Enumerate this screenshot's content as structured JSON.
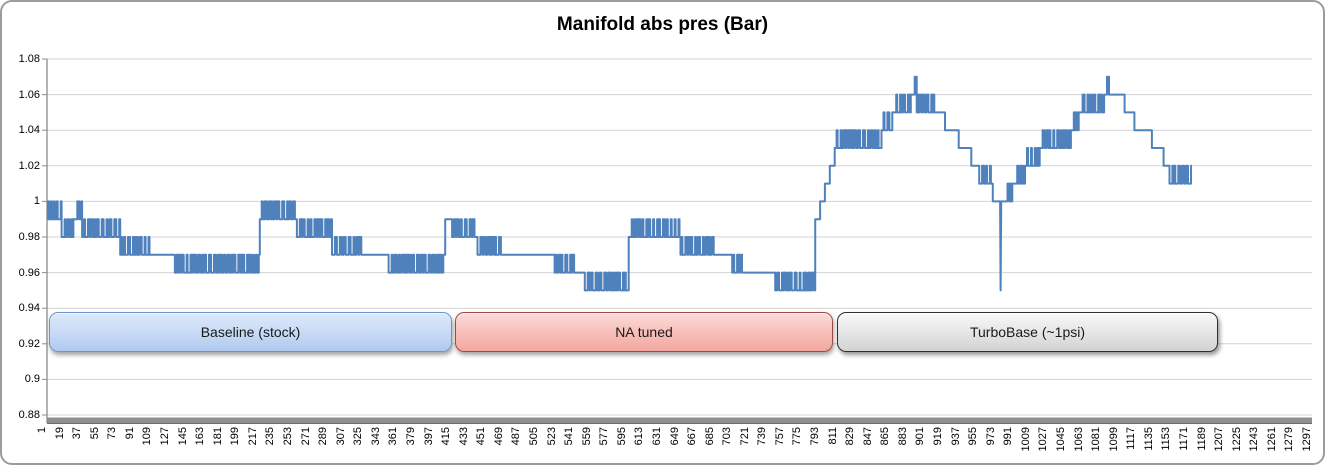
{
  "chart_data": {
    "type": "line",
    "title": "Manifold abs pres (Bar)",
    "xlabel": "",
    "ylabel": "",
    "ylim": [
      0.88,
      1.08
    ],
    "x_range": [
      1,
      1297
    ],
    "grid": true,
    "legend": "none",
    "y_tick_labels": [
      "0.88",
      "0.9",
      "0.92",
      "0.94",
      "0.96",
      "0.98",
      "1",
      "1.02",
      "1.04",
      "1.06",
      "1.08"
    ],
    "y_tick_values": [
      0.88,
      0.9,
      0.92,
      0.94,
      0.96,
      0.98,
      1.0,
      1.02,
      1.04,
      1.06,
      1.08
    ],
    "x_ticks": [
      1,
      19,
      37,
      55,
      73,
      91,
      109,
      127,
      145,
      163,
      181,
      199,
      217,
      235,
      253,
      271,
      289,
      307,
      325,
      343,
      361,
      379,
      397,
      415,
      433,
      451,
      469,
      487,
      505,
      523,
      541,
      559,
      577,
      595,
      613,
      631,
      649,
      667,
      685,
      703,
      721,
      739,
      757,
      775,
      793,
      811,
      829,
      847,
      865,
      883,
      901,
      919,
      937,
      955,
      973,
      991,
      1009,
      1027,
      1045,
      1063,
      1081,
      1099,
      1117,
      1135,
      1153,
      1171,
      1189,
      1207,
      1225,
      1243,
      1261,
      1279,
      1297
    ],
    "series_color": "#4f81bd",
    "series_segments": [
      {
        "c0": 1,
        "c1": 16,
        "type": "toggle",
        "lo": 0.99,
        "hi": 1.0
      },
      {
        "c0": 16,
        "c1": 29,
        "type": "toggle",
        "lo": 0.98,
        "hi": 0.99
      },
      {
        "c0": 29,
        "c1": 37,
        "type": "toggle",
        "lo": 0.99,
        "hi": 1.0
      },
      {
        "c0": 37,
        "c1": 76,
        "type": "toggle",
        "lo": 0.98,
        "hi": 0.99
      },
      {
        "c0": 76,
        "c1": 106,
        "type": "toggle",
        "lo": 0.97,
        "hi": 0.98
      },
      {
        "c0": 106,
        "c1": 132,
        "type": "flat",
        "v": 0.97
      },
      {
        "c0": 132,
        "c1": 219,
        "type": "toggle",
        "lo": 0.96,
        "hi": 0.97
      },
      {
        "c0": 219,
        "c1": 257,
        "type": "toggle",
        "lo": 0.99,
        "hi": 1.0
      },
      {
        "c0": 257,
        "c1": 293,
        "type": "toggle",
        "lo": 0.98,
        "hi": 0.99
      },
      {
        "c0": 293,
        "c1": 324,
        "type": "toggle",
        "lo": 0.97,
        "hi": 0.98
      },
      {
        "c0": 324,
        "c1": 351,
        "type": "flat",
        "v": 0.97
      },
      {
        "c0": 351,
        "c1": 409,
        "type": "toggle",
        "lo": 0.96,
        "hi": 0.97
      },
      {
        "c0": 409,
        "c1": 416,
        "type": "flat",
        "v": 0.99
      },
      {
        "c0": 416,
        "c1": 442,
        "type": "toggle",
        "lo": 0.98,
        "hi": 0.99
      },
      {
        "c0": 442,
        "c1": 467,
        "type": "toggle",
        "lo": 0.97,
        "hi": 0.98
      },
      {
        "c0": 467,
        "c1": 521,
        "type": "flat",
        "v": 0.97
      },
      {
        "c0": 521,
        "c1": 542,
        "type": "toggle",
        "lo": 0.96,
        "hi": 0.97
      },
      {
        "c0": 542,
        "c1": 552,
        "type": "flat",
        "v": 0.96
      },
      {
        "c0": 552,
        "c1": 597,
        "type": "toggle",
        "lo": 0.95,
        "hi": 0.96
      },
      {
        "c0": 597,
        "c1": 650,
        "type": "toggle",
        "lo": 0.98,
        "hi": 0.99
      },
      {
        "c0": 650,
        "c1": 685,
        "type": "toggle",
        "lo": 0.97,
        "hi": 0.98
      },
      {
        "c0": 685,
        "c1": 703,
        "type": "flat",
        "v": 0.97
      },
      {
        "c0": 703,
        "c1": 715,
        "type": "toggle",
        "lo": 0.96,
        "hi": 0.97
      },
      {
        "c0": 715,
        "c1": 747,
        "type": "flat",
        "v": 0.96
      },
      {
        "c0": 747,
        "c1": 788,
        "type": "toggle",
        "lo": 0.95,
        "hi": 0.96
      },
      {
        "c0": 788,
        "c1": 808,
        "type": "stair",
        "values": [
          0.99,
          1.0,
          1.01,
          1.02
        ]
      },
      {
        "c0": 808,
        "c1": 856,
        "type": "toggle",
        "lo": 1.03,
        "hi": 1.04
      },
      {
        "c0": 856,
        "c1": 869,
        "type": "toggle",
        "lo": 1.04,
        "hi": 1.05
      },
      {
        "c0": 869,
        "c1": 888,
        "type": "toggle",
        "lo": 1.05,
        "hi": 1.06
      },
      {
        "c0": 888,
        "c1": 890,
        "type": "flat",
        "v": 1.06
      },
      {
        "c0": 890,
        "c1": 892,
        "type": "flat",
        "v": 1.07
      },
      {
        "c0": 892,
        "c1": 910,
        "type": "toggle",
        "lo": 1.05,
        "hi": 1.06
      },
      {
        "c0": 910,
        "c1": 921,
        "type": "flat",
        "v": 1.05
      },
      {
        "c0": 921,
        "c1": 935,
        "type": "flat",
        "v": 1.04
      },
      {
        "c0": 935,
        "c1": 948,
        "type": "flat",
        "v": 1.03
      },
      {
        "c0": 948,
        "c1": 956,
        "type": "flat",
        "v": 1.02
      },
      {
        "c0": 956,
        "c1": 970,
        "type": "toggle",
        "lo": 1.01,
        "hi": 1.02
      },
      {
        "c0": 970,
        "c1": 977,
        "type": "flat",
        "v": 1.0
      },
      {
        "type": "vspike",
        "c": 977.5,
        "v": 0.95
      },
      {
        "c0": 979,
        "c1": 984,
        "type": "flat",
        "v": 1.0
      },
      {
        "c0": 984,
        "c1": 992,
        "type": "toggle",
        "lo": 1.0,
        "hi": 1.01
      },
      {
        "c0": 992,
        "c1": 1003,
        "type": "toggle",
        "lo": 1.01,
        "hi": 1.02
      },
      {
        "c0": 1003,
        "c1": 1020,
        "type": "toggle",
        "lo": 1.02,
        "hi": 1.03
      },
      {
        "c0": 1020,
        "c1": 1051,
        "type": "toggle",
        "lo": 1.03,
        "hi": 1.04
      },
      {
        "c0": 1051,
        "c1": 1059,
        "type": "toggle",
        "lo": 1.04,
        "hi": 1.05
      },
      {
        "c0": 1059,
        "c1": 1085,
        "type": "toggle",
        "lo": 1.05,
        "hi": 1.06
      },
      {
        "c0": 1085,
        "c1": 1087,
        "type": "flat",
        "v": 1.06
      },
      {
        "c0": 1087,
        "c1": 1089,
        "type": "flat",
        "v": 1.07
      },
      {
        "c0": 1089,
        "c1": 1105,
        "type": "flat",
        "v": 1.06
      },
      {
        "c0": 1105,
        "c1": 1115,
        "type": "flat",
        "v": 1.05
      },
      {
        "c0": 1115,
        "c1": 1133,
        "type": "flat",
        "v": 1.04
      },
      {
        "c0": 1133,
        "c1": 1145,
        "type": "flat",
        "v": 1.03
      },
      {
        "c0": 1145,
        "c1": 1151,
        "type": "flat",
        "v": 1.02
      },
      {
        "c0": 1151,
        "c1": 1174,
        "type": "toggle",
        "lo": 1.01,
        "hi": 1.02
      }
    ],
    "annotations": [
      {
        "label": "Baseline (stock)",
        "x_start": 3,
        "x_end": 416,
        "style": "blue"
      },
      {
        "label": "NA tuned",
        "x_start": 419,
        "x_end": 806,
        "style": "red"
      },
      {
        "label": "TurboBase (~1psi)",
        "x_start": 810,
        "x_end": 1200,
        "style": "gray"
      }
    ]
  },
  "colors": {
    "line": "#4f81bd",
    "gridline": "#d3d3d3",
    "y_axis_line": "#8c8c8c",
    "x_axis_band": "#8f8f8f",
    "x_axis_band_edge": "#6e6e6e",
    "frame_border": "#9c9c9c",
    "background": "#ffffff"
  }
}
